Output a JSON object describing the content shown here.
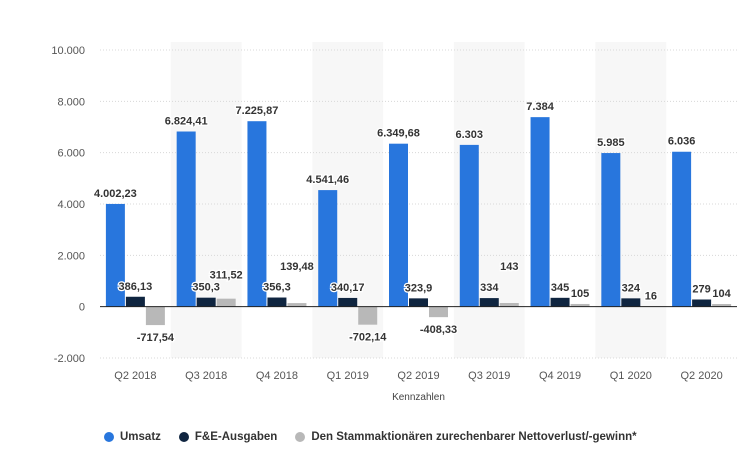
{
  "chart_data": {
    "type": "bar",
    "xlabel": "Kennzahlen",
    "ylabel": "",
    "ylim": [
      -2000,
      10000
    ],
    "yticks": [
      "-2.000",
      "0",
      "2.000",
      "4.000",
      "6.000",
      "8.000",
      "10.000"
    ],
    "ytick_values": [
      -2000,
      0,
      2000,
      4000,
      6000,
      8000,
      10000
    ],
    "grid": true,
    "legend_position": "bottom",
    "categories": [
      "Q2 2018",
      "Q3 2018",
      "Q4 2018",
      "Q1 2019",
      "Q2 2019",
      "Q3 2019",
      "Q4 2019",
      "Q1 2020",
      "Q2 2020"
    ],
    "series": [
      {
        "name": "Umsatz",
        "color": "#2876dd",
        "values": [
          4002.23,
          6824.41,
          7225.87,
          4541.46,
          6349.68,
          6303,
          7384,
          5985,
          6036
        ],
        "labels": [
          "4.002,23",
          "6.824,41",
          "7.225,87",
          "4.541,46",
          "6.349,68",
          "6.303",
          "7.384",
          "5.985",
          "6.036"
        ]
      },
      {
        "name": "F&E-Ausgaben",
        "color": "#0f2540",
        "values": [
          386.13,
          350.3,
          356.3,
          340.17,
          323.9,
          334,
          345,
          324,
          279
        ],
        "labels": [
          "386,13",
          "350,3",
          "356,3",
          "340,17",
          "323,9",
          "334",
          "345",
          "324",
          "279"
        ]
      },
      {
        "name": "Den Stammaktionären zurechenbarer Nettoverlust/-gewinn*",
        "color": "#b8b8b8",
        "values": [
          -717.54,
          311.52,
          139.48,
          -702.14,
          -408.33,
          143,
          105,
          16,
          104
        ],
        "labels": [
          "-717,54",
          "311,52",
          "139,48",
          "-702,14",
          "-408,33",
          "143",
          "105",
          "16",
          "104"
        ]
      }
    ]
  }
}
